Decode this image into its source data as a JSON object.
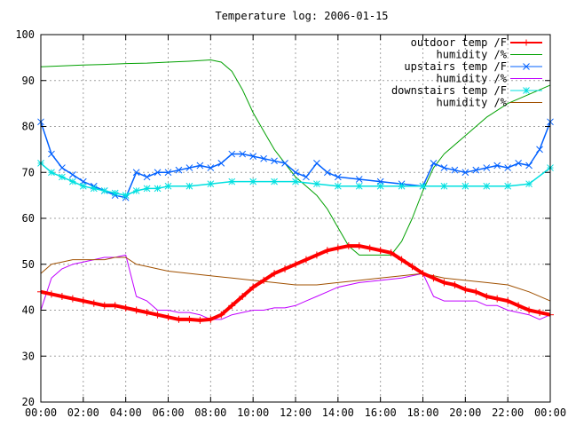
{
  "chart_data": {
    "type": "line",
    "title": "Temperature log: 2006-01-15",
    "xlabel": "",
    "ylabel": "",
    "xlim": [
      0,
      24
    ],
    "ylim": [
      20,
      100
    ],
    "x_ticks": [
      "00:00",
      "02:00",
      "04:00",
      "06:00",
      "08:00",
      "10:00",
      "12:00",
      "14:00",
      "16:00",
      "18:00",
      "20:00",
      "22:00",
      "00:00"
    ],
    "y_ticks": [
      "20",
      "30",
      "40",
      "50",
      "60",
      "70",
      "80",
      "90",
      "100"
    ],
    "grid": true,
    "legend_position": "top-right",
    "series": [
      {
        "name": "outdoor temp /F",
        "color": "#ff0000",
        "marker": "plus",
        "x": [
          0,
          0.5,
          1,
          1.5,
          2,
          2.5,
          3,
          3.5,
          4,
          4.5,
          5,
          5.5,
          6,
          6.5,
          7,
          7.5,
          8,
          8.5,
          9,
          9.5,
          10,
          10.5,
          11,
          11.5,
          12,
          12.5,
          13,
          13.5,
          14,
          14.5,
          15,
          15.5,
          16,
          16.5,
          17,
          17.5,
          18,
          18.5,
          19,
          19.5,
          20,
          20.5,
          21,
          21.5,
          22,
          22.5,
          23,
          23.5,
          24
        ],
        "y": [
          44,
          43.5,
          43,
          42.5,
          42,
          41.5,
          41,
          41,
          40.5,
          40,
          39.5,
          39,
          38.5,
          38,
          38,
          37.8,
          38,
          39,
          41,
          43,
          45,
          46.5,
          48,
          49,
          50,
          51,
          52,
          53,
          53.5,
          54,
          54,
          53.5,
          53,
          52.5,
          51,
          49.5,
          48,
          47,
          46,
          45.5,
          44.5,
          44,
          43,
          42.5,
          42,
          41,
          40,
          39.5,
          39
        ]
      },
      {
        "name": "humidity /%",
        "color": "#00a000",
        "marker": "none",
        "x": [
          0,
          1,
          2,
          3,
          4,
          5,
          6,
          7,
          8,
          8.5,
          9,
          9.5,
          10,
          10.5,
          11,
          11.5,
          12,
          12.5,
          13,
          13.5,
          14,
          14.5,
          15,
          15.5,
          16,
          16.5,
          17,
          17.5,
          18,
          18.5,
          19,
          20,
          21,
          22,
          23,
          24
        ],
        "y": [
          93,
          93.2,
          93.4,
          93.5,
          93.7,
          93.8,
          94,
          94.2,
          94.5,
          94,
          92,
          88,
          83,
          79,
          75,
          72,
          69,
          67,
          65,
          62,
          58,
          54,
          52,
          52,
          52,
          52,
          55,
          60,
          66,
          71,
          74,
          78,
          82,
          85,
          87,
          89
        ]
      },
      {
        "name": "upstairs temp /F",
        "color": "#0060ff",
        "marker": "x",
        "x": [
          0,
          0.5,
          1,
          1.5,
          2,
          2.5,
          3,
          3.5,
          4,
          4.5,
          5,
          5.5,
          6,
          6.5,
          7,
          7.5,
          8,
          8.5,
          9,
          9.5,
          10,
          10.5,
          11,
          11.5,
          12,
          12.5,
          13,
          13.5,
          14,
          15,
          16,
          17,
          18,
          18.5,
          19,
          19.5,
          20,
          20.5,
          21,
          21.5,
          22,
          22.5,
          23,
          23.5,
          24
        ],
        "y": [
          81,
          74,
          71,
          69.5,
          68,
          67,
          66,
          65,
          64.5,
          70,
          69,
          70,
          70,
          70.5,
          71,
          71.5,
          71,
          72,
          74,
          74,
          73.5,
          73,
          72.5,
          72,
          70,
          69,
          72,
          70,
          69,
          68.5,
          68,
          67.5,
          67,
          72,
          71,
          70.5,
          70,
          70.5,
          71,
          71.5,
          71,
          72,
          71.5,
          75,
          81
        ]
      },
      {
        "name": "humidity /%",
        "color": "#c000ff",
        "marker": "none",
        "x": [
          0,
          0.5,
          1,
          1.5,
          2,
          2.5,
          3,
          3.5,
          4,
          4.5,
          5,
          5.5,
          6,
          6.5,
          7,
          7.5,
          8,
          8.5,
          9,
          9.5,
          10,
          10.5,
          11,
          11.5,
          12,
          12.5,
          13,
          13.5,
          14,
          15,
          16,
          17,
          18,
          18.5,
          19,
          19.5,
          20,
          20.5,
          21,
          21.5,
          22,
          22.5,
          23,
          23.5,
          24
        ],
        "y": [
          40,
          47,
          49,
          50,
          50.5,
          51,
          51.5,
          51.5,
          52,
          43,
          42,
          40,
          40,
          39.5,
          39.5,
          39,
          38,
          38,
          39,
          39.5,
          40,
          40,
          40.5,
          40.5,
          41,
          42,
          43,
          44,
          45,
          46,
          46.5,
          47,
          48,
          43,
          42,
          42,
          42,
          42,
          41,
          41,
          40,
          39.5,
          39,
          38,
          39
        ]
      },
      {
        "name": "downstairs temp /F",
        "color": "#00e0e0",
        "marker": "star",
        "x": [
          0,
          0.5,
          1,
          1.5,
          2,
          2.5,
          3,
          3.5,
          4,
          4.5,
          5,
          5.5,
          6,
          7,
          8,
          9,
          10,
          11,
          12,
          13,
          14,
          15,
          16,
          17,
          18,
          19,
          20,
          21,
          22,
          23,
          24
        ],
        "y": [
          72,
          70,
          69,
          68,
          67,
          66.5,
          66,
          65.5,
          65,
          66,
          66.5,
          66.5,
          67,
          67,
          67.5,
          68,
          68,
          68,
          68,
          67.5,
          67,
          67,
          67,
          67,
          67,
          67,
          67,
          67,
          67,
          67.5,
          71
        ]
      },
      {
        "name": "humidity /%",
        "color": "#a05000",
        "marker": "none",
        "x": [
          0,
          0.5,
          1,
          1.5,
          2,
          2.5,
          3,
          3.5,
          4,
          4.5,
          5,
          5.5,
          6,
          7,
          8,
          9,
          10,
          11,
          12,
          13,
          14,
          15,
          16,
          17,
          18,
          19,
          20,
          21,
          22,
          23,
          24
        ],
        "y": [
          48,
          50,
          50.5,
          51,
          51,
          51,
          51,
          51.5,
          51.5,
          50,
          49.5,
          49,
          48.5,
          48,
          47.5,
          47,
          46.5,
          46,
          45.5,
          45.5,
          46,
          46.5,
          47,
          47.5,
          48,
          47,
          46.5,
          46,
          45.5,
          44,
          42
        ]
      }
    ]
  }
}
